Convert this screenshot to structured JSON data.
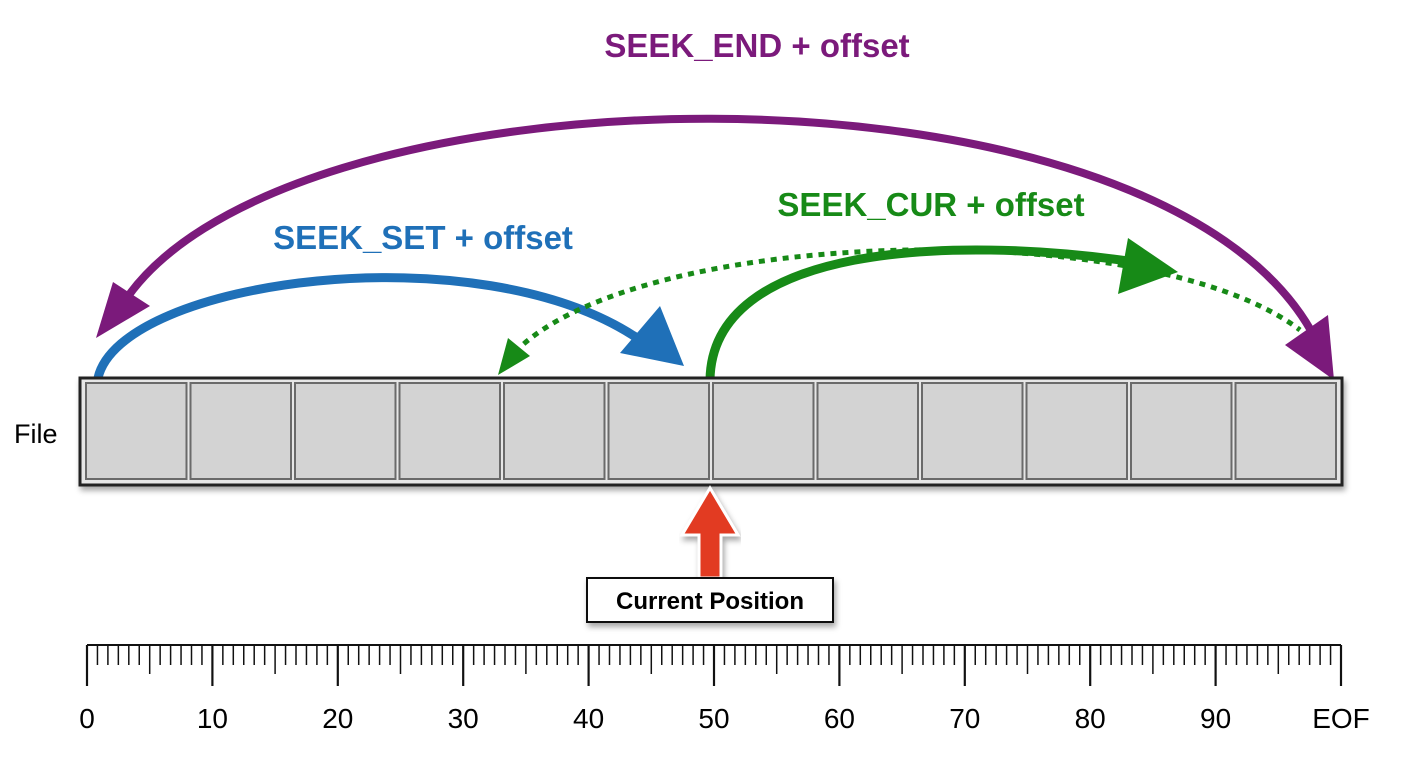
{
  "labels": {
    "seek_end": "SEEK_END + offset",
    "seek_set": "SEEK_SET + offset",
    "seek_cur": "SEEK_CUR + offset",
    "file": "File",
    "current_position": "Current Position"
  },
  "file": {
    "cell_count": 12,
    "current_position_boundary": 6
  },
  "ruler": {
    "tick_labels": [
      "0",
      "10",
      "20",
      "30",
      "40",
      "50",
      "60",
      "70",
      "80",
      "90",
      "EOF"
    ],
    "minor_ticks_per_major": 12
  },
  "colors": {
    "seek_end": "#7b1a7b",
    "seek_set": "#1f70b8",
    "seek_cur": "#178a17",
    "current_position_arrow": "#e23b22",
    "cell_fill": "#d3d3d3"
  }
}
